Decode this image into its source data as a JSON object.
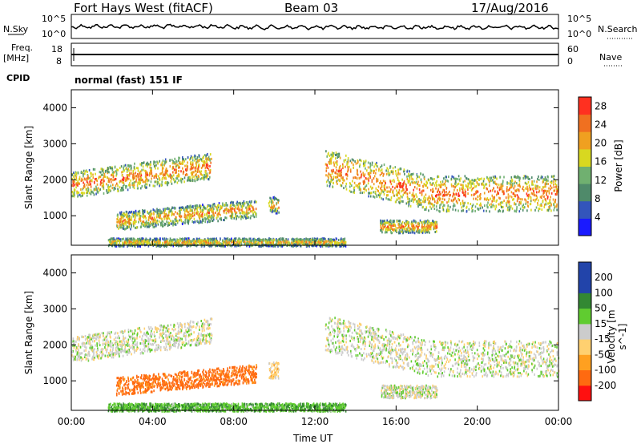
{
  "header": {
    "station": "Fort Hays West (fitACF)",
    "beam": "Beam 03",
    "date": "17/Aug/2016"
  },
  "top_panels": {
    "nsky_label": "N.Sky",
    "nsearch_label": "N.Search",
    "noise_ticks": [
      "10^5",
      "10^0"
    ],
    "noise_ticks_right": [
      "10^5",
      "10^0"
    ],
    "freq_label": "Freq.",
    "freq_unit": "[MHz]",
    "freq_ticks": [
      "18",
      "8"
    ],
    "nave_label": "Nave",
    "nave_ticks": [
      "60",
      "0"
    ],
    "cpid_label": "CPID",
    "cpid_value": "normal (fast) 151 IF"
  },
  "chart_data": [
    {
      "type": "heatmap",
      "name": "power",
      "xlabel": "",
      "ylabel": "Slant Range [km]",
      "x_range": [
        "00:00",
        "24:00"
      ],
      "ylim": [
        180,
        4500
      ],
      "y_ticks": [
        1000,
        2000,
        3000,
        4000
      ],
      "colorbar_label": "Power [dB]",
      "colorbar_ticks": [
        4,
        8,
        12,
        16,
        20,
        24,
        28
      ],
      "colorbar_range": [
        0,
        30
      ],
      "colors": [
        "#1a1aff",
        "#3355bb",
        "#4f8a6a",
        "#70b070",
        "#d8d820",
        "#f0a020",
        "#f07020",
        "#ff3020"
      ],
      "echo_regions": [
        {
          "t0": 0.0,
          "t1": 6.9,
          "r0": 1500,
          "r1": 2800,
          "level": 0.55,
          "trend": "rising"
        },
        {
          "t0": 2.2,
          "t1": 9.1,
          "r0": 600,
          "r1": 1500,
          "level": 0.45,
          "trend": "rising"
        },
        {
          "t0": 9.7,
          "t1": 10.2,
          "r0": 1100,
          "r1": 1550,
          "level": 0.4,
          "trend": "flat"
        },
        {
          "t0": 12.5,
          "t1": 24.0,
          "r0": 1100,
          "r1": 2900,
          "level": 0.6,
          "trend": "falling"
        },
        {
          "t0": 15.2,
          "t1": 18.0,
          "r0": 550,
          "r1": 900,
          "level": 0.5,
          "trend": "flat"
        },
        {
          "t0": 1.8,
          "t1": 13.5,
          "r0": 180,
          "r1": 400,
          "level": 0.35,
          "trend": "flat"
        }
      ]
    },
    {
      "type": "heatmap",
      "name": "velocity",
      "xlabel": "Time UT",
      "ylabel": "Slant Range [km]",
      "x_ticks": [
        "00:00",
        "04:00",
        "08:00",
        "12:00",
        "16:00",
        "20:00",
        "00:00"
      ],
      "ylim": [
        180,
        4500
      ],
      "y_ticks": [
        1000,
        2000,
        3000,
        4000
      ],
      "colorbar_label": "Velocity [m s^-1]",
      "colorbar_ticks": [
        200,
        100,
        50,
        15,
        -15,
        -50,
        -100,
        -200
      ],
      "colorbar_range": [
        -250,
        250
      ],
      "colors": [
        "#ff1010",
        "#ff6a10",
        "#ffa020",
        "#ffd070",
        "#cccccc",
        "#60cc30",
        "#338833",
        "#2244aa",
        "#2244aa"
      ],
      "echo_regions": [
        {
          "t0": 0.0,
          "t1": 6.9,
          "r0": 1500,
          "r1": 2800,
          "velocity": 0,
          "trend": "rising"
        },
        {
          "t0": 2.2,
          "t1": 9.1,
          "r0": 600,
          "r1": 1500,
          "velocity": -120,
          "trend": "rising"
        },
        {
          "t0": 9.7,
          "t1": 10.2,
          "r0": 1100,
          "r1": 1550,
          "velocity": -30,
          "trend": "flat"
        },
        {
          "t0": 12.5,
          "t1": 24.0,
          "r0": 1100,
          "r1": 2900,
          "velocity": 0,
          "trend": "falling"
        },
        {
          "t0": 15.2,
          "t1": 18.0,
          "r0": 550,
          "r1": 900,
          "velocity": 0,
          "trend": "flat"
        },
        {
          "t0": 1.8,
          "t1": 13.5,
          "r0": 180,
          "r1": 400,
          "velocity": 40,
          "trend": "flat"
        }
      ]
    }
  ]
}
